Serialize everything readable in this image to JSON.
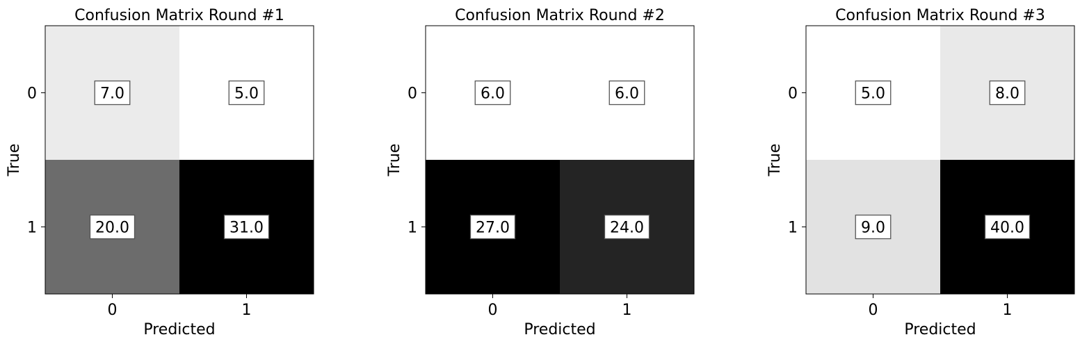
{
  "chart_data": [
    {
      "type": "heatmap",
      "title": "Confusion Matrix Round #1",
      "xlabel": "Predicted",
      "ylabel": "True",
      "x_categories": [
        "0",
        "1"
      ],
      "y_categories": [
        "0",
        "1"
      ],
      "values": [
        [
          7.0,
          5.0
        ],
        [
          20.0,
          31.0
        ]
      ],
      "cell_labels": [
        [
          "7.0",
          "5.0"
        ],
        [
          "20.0",
          "31.0"
        ]
      ],
      "colormap": "Greys"
    },
    {
      "type": "heatmap",
      "title": "Confusion Matrix Round #2",
      "xlabel": "Predicted",
      "ylabel": "True",
      "x_categories": [
        "0",
        "1"
      ],
      "y_categories": [
        "0",
        "1"
      ],
      "values": [
        [
          6.0,
          6.0
        ],
        [
          27.0,
          24.0
        ]
      ],
      "cell_labels": [
        [
          "6.0",
          "6.0"
        ],
        [
          "27.0",
          "24.0"
        ]
      ],
      "colormap": "Greys"
    },
    {
      "type": "heatmap",
      "title": "Confusion Matrix Round #3",
      "xlabel": "Predicted",
      "ylabel": "True",
      "x_categories": [
        "0",
        "1"
      ],
      "y_categories": [
        "0",
        "1"
      ],
      "values": [
        [
          5.0,
          8.0
        ],
        [
          9.0,
          40.0
        ]
      ],
      "cell_labels": [
        [
          "5.0",
          "8.0"
        ],
        [
          "9.0",
          "40.0"
        ]
      ],
      "colormap": "Greys"
    }
  ]
}
